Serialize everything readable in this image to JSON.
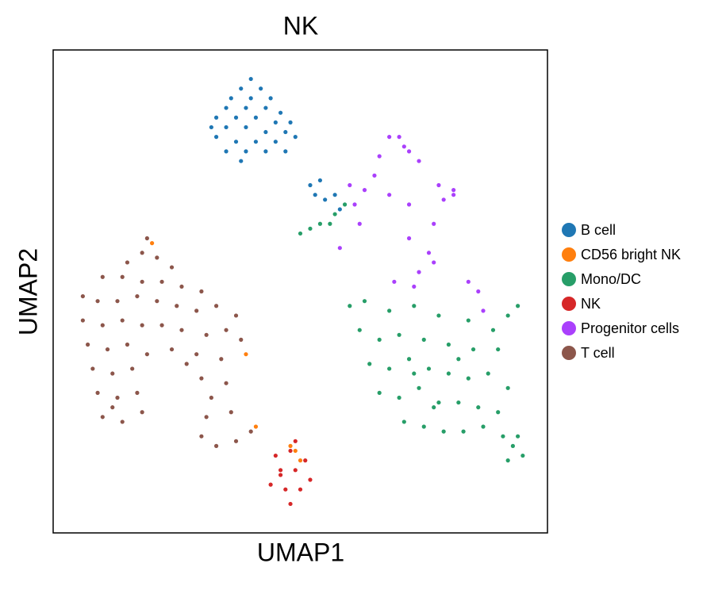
{
  "chart_data": {
    "type": "scatter",
    "title": "NK",
    "xlabel": "UMAP1",
    "ylabel": "UMAP2",
    "xlim": [
      0,
      100
    ],
    "ylim": [
      0,
      100
    ],
    "legend": "right",
    "series": [
      {
        "name": "B cell",
        "color": "#1f77b4",
        "x": [
          40,
          38,
          42,
          36,
          40,
          44,
          35,
          39,
          43,
          46,
          33,
          37,
          41,
          45,
          48,
          32,
          35,
          39,
          43,
          47,
          33,
          37,
          41,
          45,
          49,
          35,
          39,
          43,
          38,
          47,
          52,
          53,
          55,
          57,
          54,
          58
        ],
        "y": [
          94,
          92,
          92,
          90,
          90,
          90,
          88,
          88,
          88,
          87,
          86,
          86,
          86,
          85,
          85,
          84,
          84,
          84,
          83,
          83,
          82,
          81,
          81,
          81,
          82,
          79,
          79,
          79,
          77,
          79,
          72,
          70,
          69,
          70,
          73,
          67
        ]
      },
      {
        "name": "CD56 bright NK",
        "color": "#ff7f0e",
        "x": [
          48,
          49,
          50,
          39,
          20,
          41
        ],
        "y": [
          18,
          17,
          15,
          37,
          60,
          22
        ]
      },
      {
        "name": "Mono/DC",
        "color": "#279e68",
        "x": [
          63,
          68,
          73,
          78,
          84,
          89,
          92,
          62,
          66,
          70,
          75,
          80,
          85,
          90,
          64,
          68,
          72,
          76,
          80,
          84,
          88,
          92,
          66,
          70,
          74,
          78,
          82,
          86,
          90,
          71,
          75,
          79,
          83,
          87,
          77,
          73,
          82,
          60,
          94,
          91,
          93,
          95,
          92,
          94,
          50,
          52,
          54,
          56,
          57,
          59
        ],
        "y": [
          48,
          46,
          47,
          45,
          44,
          42,
          45,
          42,
          40,
          41,
          40,
          39,
          38,
          38,
          35,
          34,
          36,
          34,
          33,
          32,
          33,
          30,
          29,
          28,
          30,
          27,
          27,
          26,
          25,
          23,
          22,
          21,
          21,
          22,
          26,
          33,
          36,
          47,
          47,
          20,
          18,
          16,
          15,
          20,
          62,
          63,
          64,
          64,
          66,
          68
        ]
      },
      {
        "name": "NK",
        "color": "#d62728",
        "x": [
          45,
          48,
          46,
          49,
          52,
          44,
          47,
          50,
          48,
          46,
          51,
          49
        ],
        "y": [
          16,
          17,
          13,
          13,
          11,
          10,
          9,
          9,
          6,
          12,
          15,
          19
        ]
      },
      {
        "name": "Progenitor cells",
        "color": "#aa40fc",
        "x": [
          58,
          61,
          65,
          68,
          71,
          74,
          78,
          81,
          77,
          76,
          74,
          73,
          86,
          87,
          69,
          63,
          60,
          66,
          70,
          72,
          79,
          81,
          72,
          68,
          62,
          72,
          84,
          77
        ],
        "y": [
          59,
          68,
          74,
          82,
          80,
          77,
          72,
          70,
          64,
          58,
          54,
          51,
          50,
          46,
          52,
          71,
          72,
          78,
          82,
          79,
          69,
          71,
          68,
          70,
          64,
          61,
          52,
          56
        ]
      },
      {
        "name": "T cell",
        "color": "#8c564b",
        "x": [
          19,
          18,
          15,
          21,
          24,
          10,
          14,
          18,
          22,
          26,
          30,
          6,
          9,
          13,
          17,
          21,
          25,
          29,
          33,
          37,
          6,
          10,
          14,
          18,
          22,
          26,
          31,
          35,
          38,
          7,
          11,
          15,
          19,
          29,
          34,
          8,
          12,
          16,
          30,
          35,
          9,
          13,
          17,
          32,
          10,
          14,
          18,
          31,
          36,
          30,
          33,
          37,
          40,
          12,
          27,
          24
        ],
        "y": [
          61,
          58,
          56,
          57,
          55,
          53,
          53,
          52,
          52,
          51,
          50,
          49,
          48,
          48,
          49,
          48,
          47,
          46,
          47,
          45,
          44,
          43,
          44,
          43,
          43,
          42,
          41,
          42,
          40,
          39,
          38,
          39,
          37,
          37,
          36,
          34,
          33,
          34,
          32,
          31,
          29,
          28,
          29,
          28,
          24,
          23,
          25,
          24,
          25,
          20,
          18,
          19,
          21,
          26,
          35,
          38
        ]
      }
    ]
  }
}
